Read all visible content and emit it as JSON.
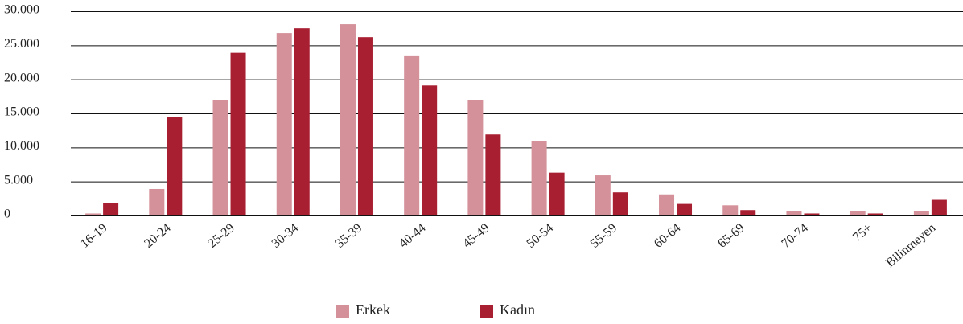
{
  "chart_data": {
    "type": "bar",
    "categories": [
      "16-19",
      "20-24",
      "25-29",
      "30-34",
      "35-39",
      "40-44",
      "45-49",
      "50-54",
      "55-59",
      "60-64",
      "65-69",
      "70-74",
      "75+",
      "Bilinmeyen"
    ],
    "series": [
      {
        "name": "Erkek",
        "color": "#d4919a",
        "values": [
          300,
          3900,
          16900,
          26800,
          28100,
          23400,
          16900,
          10900,
          5900,
          3100,
          1500,
          700,
          700,
          700
        ]
      },
      {
        "name": "Kadın",
        "color": "#a91f32",
        "values": [
          1800,
          14500,
          23900,
          27500,
          26200,
          19100,
          11900,
          6300,
          3400,
          1700,
          800,
          300,
          300,
          2300
        ]
      }
    ],
    "ylim": [
      0,
      30000
    ],
    "yticks": [
      0,
      {
        "value": 5000,
        "label": "5.000"
      },
      {
        "value": 10000,
        "label": "10.000"
      },
      {
        "value": 15000,
        "label": "15.000"
      },
      {
        "value": 20000,
        "label": "20.000"
      },
      {
        "value": 25000,
        "label": "25.000"
      },
      {
        "value": 30000,
        "label": "30.000"
      }
    ],
    "grid": true,
    "legend": "bottom"
  }
}
